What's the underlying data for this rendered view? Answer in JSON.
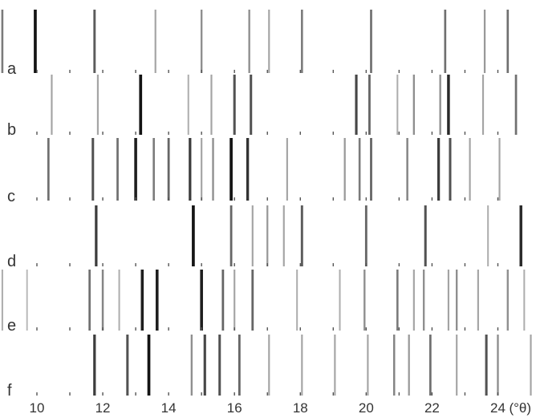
{
  "chart_data": {
    "type": "stick-pattern",
    "x_unit": "(°θ)",
    "xlim": [
      8.9,
      25.4
    ],
    "ticks": [
      10,
      12,
      14,
      16,
      18,
      20,
      22,
      24
    ],
    "tick_labels": [
      "10",
      "12",
      "14",
      "16",
      "18",
      "20",
      "22",
      "24"
    ],
    "rows": [
      {
        "label": "a",
        "peaks": [
          {
            "x": 8.95,
            "i": 0.5
          },
          {
            "x": 9.95,
            "i": 1.0
          },
          {
            "x": 11.75,
            "i": 0.65
          },
          {
            "x": 13.6,
            "i": 0.3
          },
          {
            "x": 15.0,
            "i": 0.4
          },
          {
            "x": 16.45,
            "i": 0.4
          },
          {
            "x": 17.05,
            "i": 0.3
          },
          {
            "x": 18.05,
            "i": 0.5
          },
          {
            "x": 20.15,
            "i": 0.55
          },
          {
            "x": 22.4,
            "i": 0.55
          },
          {
            "x": 23.6,
            "i": 0.35
          },
          {
            "x": 24.3,
            "i": 0.55
          }
        ]
      },
      {
        "label": "b",
        "peaks": [
          {
            "x": 10.45,
            "i": 0.3
          },
          {
            "x": 11.85,
            "i": 0.3
          },
          {
            "x": 13.15,
            "i": 1.0
          },
          {
            "x": 14.6,
            "i": 0.25
          },
          {
            "x": 15.3,
            "i": 0.3
          },
          {
            "x": 16.0,
            "i": 0.7
          },
          {
            "x": 16.5,
            "i": 0.7
          },
          {
            "x": 19.7,
            "i": 0.75
          },
          {
            "x": 20.1,
            "i": 0.6
          },
          {
            "x": 20.95,
            "i": 0.25
          },
          {
            "x": 21.45,
            "i": 0.4
          },
          {
            "x": 22.25,
            "i": 0.4
          },
          {
            "x": 22.5,
            "i": 0.9
          },
          {
            "x": 23.55,
            "i": 0.3
          },
          {
            "x": 24.55,
            "i": 0.55
          },
          {
            "x": 25.2,
            "i": 0.45
          },
          {
            "x": 25.5,
            "i": 0.7
          }
        ]
      },
      {
        "label": "c",
        "peaks": [
          {
            "x": 10.35,
            "i": 0.55
          },
          {
            "x": 11.7,
            "i": 0.7
          },
          {
            "x": 12.45,
            "i": 0.55
          },
          {
            "x": 13.0,
            "i": 0.95
          },
          {
            "x": 13.55,
            "i": 0.5
          },
          {
            "x": 14.0,
            "i": 0.6
          },
          {
            "x": 14.65,
            "i": 0.8
          },
          {
            "x": 15.0,
            "i": 0.3
          },
          {
            "x": 15.35,
            "i": 0.4
          },
          {
            "x": 15.9,
            "i": 1.0
          },
          {
            "x": 16.4,
            "i": 0.85
          },
          {
            "x": 17.6,
            "i": 0.3
          },
          {
            "x": 19.35,
            "i": 0.35
          },
          {
            "x": 19.8,
            "i": 0.5
          },
          {
            "x": 20.15,
            "i": 0.6
          },
          {
            "x": 21.25,
            "i": 0.45
          },
          {
            "x": 22.2,
            "i": 0.8
          },
          {
            "x": 22.55,
            "i": 0.7
          },
          {
            "x": 23.15,
            "i": 0.3
          },
          {
            "x": 24.05,
            "i": 0.3
          }
        ]
      },
      {
        "label": "d",
        "peaks": [
          {
            "x": 11.8,
            "i": 0.8
          },
          {
            "x": 14.75,
            "i": 1.0
          },
          {
            "x": 15.9,
            "i": 0.6
          },
          {
            "x": 16.55,
            "i": 0.3
          },
          {
            "x": 17.0,
            "i": 0.35
          },
          {
            "x": 17.5,
            "i": 0.3
          },
          {
            "x": 18.05,
            "i": 0.65
          },
          {
            "x": 20.0,
            "i": 0.6
          },
          {
            "x": 21.8,
            "i": 0.7
          },
          {
            "x": 23.7,
            "i": 0.25
          },
          {
            "x": 24.7,
            "i": 0.9
          }
        ]
      },
      {
        "label": "e",
        "peaks": [
          {
            "x": 8.95,
            "i": 0.25
          },
          {
            "x": 9.7,
            "i": 0.2
          },
          {
            "x": 11.6,
            "i": 0.55
          },
          {
            "x": 12.0,
            "i": 0.45
          },
          {
            "x": 12.5,
            "i": 0.25
          },
          {
            "x": 13.2,
            "i": 0.95
          },
          {
            "x": 13.65,
            "i": 0.95
          },
          {
            "x": 15.0,
            "i": 0.95
          },
          {
            "x": 15.65,
            "i": 0.6
          },
          {
            "x": 16.0,
            "i": 0.3
          },
          {
            "x": 16.55,
            "i": 0.6
          },
          {
            "x": 17.9,
            "i": 0.25
          },
          {
            "x": 19.2,
            "i": 0.25
          },
          {
            "x": 19.95,
            "i": 0.4
          },
          {
            "x": 20.95,
            "i": 0.5
          },
          {
            "x": 21.45,
            "i": 0.3
          },
          {
            "x": 21.75,
            "i": 0.4
          },
          {
            "x": 22.5,
            "i": 0.3
          },
          {
            "x": 22.75,
            "i": 0.4
          },
          {
            "x": 23.4,
            "i": 0.3
          },
          {
            "x": 24.3,
            "i": 0.4
          },
          {
            "x": 24.8,
            "i": 0.25
          }
        ]
      },
      {
        "label": "f",
        "peaks": [
          {
            "x": 11.75,
            "i": 0.8
          },
          {
            "x": 12.75,
            "i": 0.7
          },
          {
            "x": 13.4,
            "i": 1.0
          },
          {
            "x": 14.7,
            "i": 0.4
          },
          {
            "x": 15.1,
            "i": 0.75
          },
          {
            "x": 15.55,
            "i": 0.7
          },
          {
            "x": 16.15,
            "i": 0.6
          },
          {
            "x": 17.05,
            "i": 0.3
          },
          {
            "x": 18.05,
            "i": 0.3
          },
          {
            "x": 19.05,
            "i": 0.3
          },
          {
            "x": 20.05,
            "i": 0.3
          },
          {
            "x": 20.85,
            "i": 0.45
          },
          {
            "x": 21.3,
            "i": 0.35
          },
          {
            "x": 21.95,
            "i": 0.55
          },
          {
            "x": 22.75,
            "i": 0.3
          },
          {
            "x": 23.65,
            "i": 0.7
          },
          {
            "x": 24.0,
            "i": 0.4
          },
          {
            "x": 25.0,
            "i": 0.3
          }
        ]
      }
    ]
  }
}
